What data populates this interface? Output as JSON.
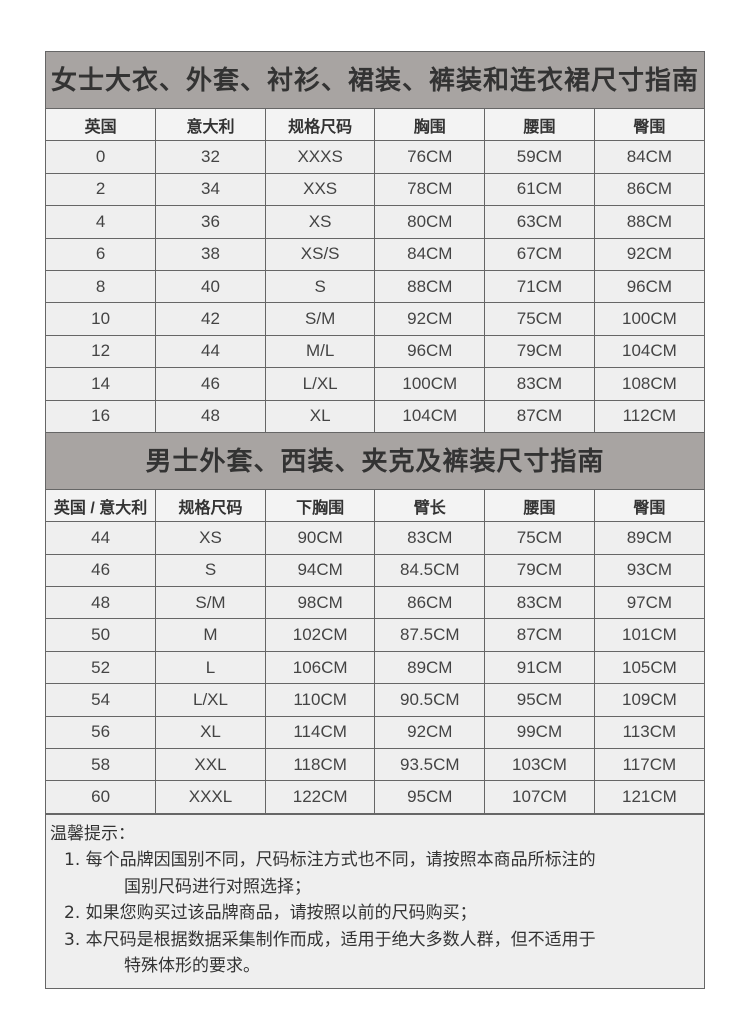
{
  "women": {
    "title": "女士大衣、外套、衬衫、裙装、裤装和连衣裙尺寸指南",
    "headers": [
      "英国",
      "意大利",
      "规格尺码",
      "胸围",
      "腰围",
      "臀围"
    ],
    "rows": [
      [
        "0",
        "32",
        "XXXS",
        "76CM",
        "59CM",
        "84CM"
      ],
      [
        "2",
        "34",
        "XXS",
        "78CM",
        "61CM",
        "86CM"
      ],
      [
        "4",
        "36",
        "XS",
        "80CM",
        "63CM",
        "88CM"
      ],
      [
        "6",
        "38",
        "XS/S",
        "84CM",
        "67CM",
        "92CM"
      ],
      [
        "8",
        "40",
        "S",
        "88CM",
        "71CM",
        "96CM"
      ],
      [
        "10",
        "42",
        "S/M",
        "92CM",
        "75CM",
        "100CM"
      ],
      [
        "12",
        "44",
        "M/L",
        "96CM",
        "79CM",
        "104CM"
      ],
      [
        "14",
        "46",
        "L/XL",
        "100CM",
        "83CM",
        "108CM"
      ],
      [
        "16",
        "48",
        "XL",
        "104CM",
        "87CM",
        "112CM"
      ]
    ]
  },
  "men": {
    "title": "男士外套、西装、夹克及裤装尺寸指南",
    "headers": [
      "英国 / 意大利",
      "规格尺码",
      "下胸围",
      "臂长",
      "腰围",
      "臀围"
    ],
    "rows": [
      [
        "44",
        "XS",
        "90CM",
        "83CM",
        "75CM",
        "89CM"
      ],
      [
        "46",
        "S",
        "94CM",
        "84.5CM",
        "79CM",
        "93CM"
      ],
      [
        "48",
        "S/M",
        "98CM",
        "86CM",
        "83CM",
        "97CM"
      ],
      [
        "50",
        "M",
        "102CM",
        "87.5CM",
        "87CM",
        "101CM"
      ],
      [
        "52",
        "L",
        "106CM",
        "89CM",
        "91CM",
        "105CM"
      ],
      [
        "54",
        "L/XL",
        "110CM",
        "90.5CM",
        "95CM",
        "109CM"
      ],
      [
        "56",
        "XL",
        "114CM",
        "92CM",
        "99CM",
        "113CM"
      ],
      [
        "58",
        "XXL",
        "118CM",
        "93.5CM",
        "103CM",
        "117CM"
      ],
      [
        "60",
        "XXXL",
        "122CM",
        "95CM",
        "107CM",
        "121CM"
      ]
    ]
  },
  "notes": {
    "heading": "温馨提示：",
    "items": [
      {
        "first": "1. 每个品牌因国别不同，尺码标注方式也不同，请按照本商品所标注的",
        "cont": "国别尺码进行对照选择；"
      },
      {
        "first": "2. 如果您购买过该品牌商品，请按照以前的尺码购买；",
        "cont": ""
      },
      {
        "first": "3. 本尺码是根据数据采集制作而成，适用于绝大多数人群，但不适用于",
        "cont": "特殊体形的要求。"
      }
    ]
  }
}
